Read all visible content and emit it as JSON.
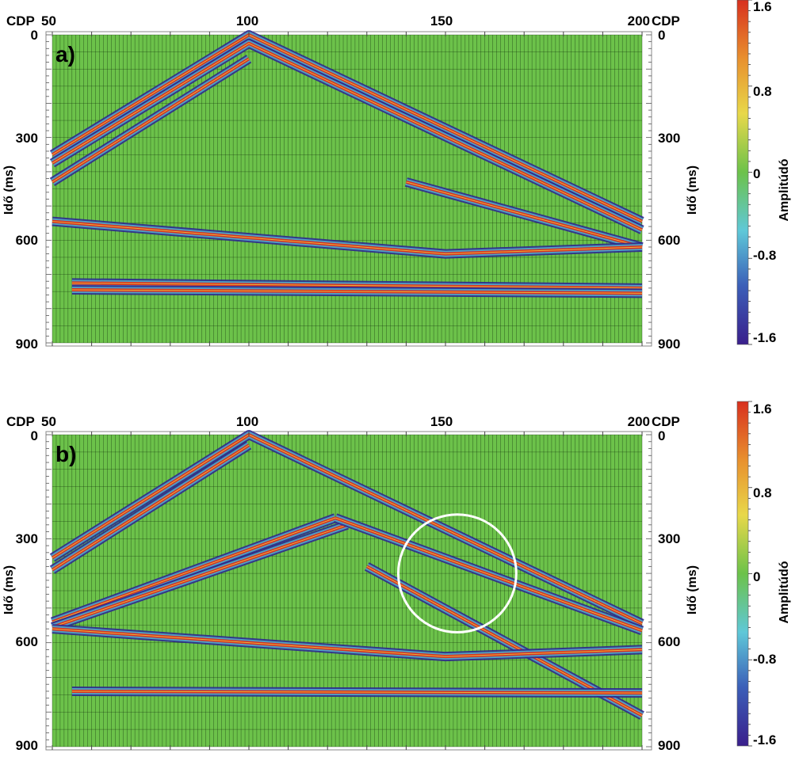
{
  "chart_data": [
    {
      "type": "heatmap",
      "panel_label": "a)",
      "x_label_left": "CDP",
      "x_label_right": "CDP",
      "ylabel_left": "Idő (ms)",
      "ylabel_right": "Idő (ms)",
      "xlim": [
        50,
        200
      ],
      "ylim": [
        0,
        900
      ],
      "x_ticks": [
        "50",
        "100",
        "150",
        "200"
      ],
      "y_ticks": [
        "0",
        "300",
        "600",
        "900"
      ],
      "colorbar": {
        "label": "Amplitúdó",
        "ticks": [
          "1.6",
          "0.8",
          "0",
          "-0.8",
          "-1.6"
        ],
        "range": [
          -1.6,
          1.6
        ],
        "colors": [
          "#3a1f8c",
          "#3b5fb8",
          "#5fc8d8",
          "#6cc24a",
          "#e8d84a",
          "#e8902e",
          "#d8301e"
        ]
      },
      "events": [
        {
          "x": [
            50,
            100,
            200
          ],
          "t": [
            350,
            0,
            545
          ]
        },
        {
          "x": [
            50,
            100,
            200
          ],
          "t": [
            375,
            25,
            570
          ]
        },
        {
          "x": [
            50,
            100
          ],
          "t": [
            430,
            70
          ]
        },
        {
          "x": [
            140,
            200
          ],
          "t": [
            430,
            620
          ]
        },
        {
          "x": [
            50,
            150,
            200
          ],
          "t": [
            545,
            640,
            620
          ]
        },
        {
          "x": [
            55,
            200
          ],
          "t": [
            725,
            740
          ]
        },
        {
          "x": [
            55,
            200
          ],
          "t": [
            745,
            755
          ]
        }
      ]
    },
    {
      "type": "heatmap",
      "panel_label": "b)",
      "x_label_left": "CDP",
      "x_label_right": "CDP",
      "ylabel_left": "Idő (ms)",
      "ylabel_right": "Idő (ms)",
      "xlim": [
        50,
        200
      ],
      "ylim": [
        0,
        900
      ],
      "x_ticks": [
        "50",
        "100",
        "150",
        "200"
      ],
      "y_ticks": [
        "0",
        "300",
        "600",
        "900"
      ],
      "colorbar": {
        "label": "Amplitúdó",
        "ticks": [
          "1.6",
          "0.8",
          "0",
          "-0.8",
          "-1.6"
        ],
        "range": [
          -1.6,
          1.6
        ],
        "colors": [
          "#3a1f8c",
          "#3b5fb8",
          "#5fc8d8",
          "#6cc24a",
          "#e8d84a",
          "#e8902e",
          "#d8301e"
        ]
      },
      "events": [
        {
          "x": [
            50,
            100,
            200
          ],
          "t": [
            355,
            0,
            545
          ]
        },
        {
          "x": [
            50,
            100
          ],
          "t": [
            390,
            30
          ]
        },
        {
          "x": [
            50,
            122
          ],
          "t": [
            540,
            240
          ]
        },
        {
          "x": [
            50,
            125
          ],
          "t": [
            555,
            260
          ]
        },
        {
          "x": [
            122,
            200
          ],
          "t": [
            240,
            565
          ]
        },
        {
          "x": [
            130,
            200
          ],
          "t": [
            380,
            810
          ]
        },
        {
          "x": [
            50,
            150,
            200
          ],
          "t": [
            560,
            640,
            620
          ]
        },
        {
          "x": [
            55,
            200
          ],
          "t": [
            740,
            745
          ]
        }
      ],
      "annotation": {
        "shape": "circle",
        "center_cdp": 153,
        "center_ms": 400,
        "radius_ms": 170
      }
    }
  ]
}
